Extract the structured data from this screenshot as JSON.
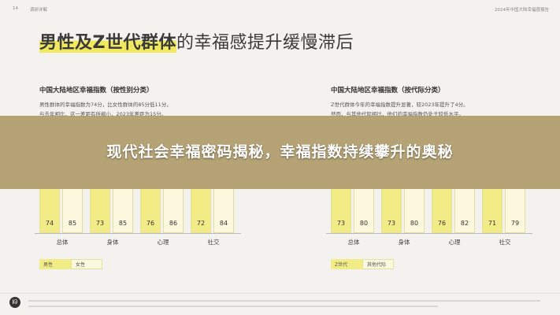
{
  "header": {
    "page_number": "14",
    "section": "调研详解",
    "report": "2024年中国大陆幸福感报告"
  },
  "title": {
    "highlight": "男性及Z世代群体",
    "rest": "的幸福感提升缓慢滞后"
  },
  "panels": {
    "left": {
      "heading": "中国大陆地区幸福指数（按性别分类）",
      "lines": [
        "男性群体的幸福指数为74分，比女性群体的85分低11分。",
        "与去年相比，这一差距有所缩小，2023年差距为15分。"
      ]
    },
    "right": {
      "heading": "中国大陆地区幸福指数（按代际分类）",
      "lines": [
        "Z世代群体今年的幸福指数提升显著，较2023年提升了4分。",
        "然而，与其他代际相比，他们的幸福指数仍处于较低水平。"
      ]
    }
  },
  "overlay": {
    "title": "现代社会幸福密码揭秘，幸福指数持续攀升的奥秘"
  },
  "charts": {
    "left": {
      "categories": [
        "总体",
        "身体",
        "心理",
        "社交"
      ],
      "values": [
        [
          "74",
          "85"
        ],
        [
          "73",
          "85"
        ],
        [
          "76",
          "86"
        ],
        [
          "72",
          "84"
        ]
      ],
      "legend": [
        "男性",
        "女性"
      ]
    },
    "right": {
      "categories": [
        "总体",
        "身体",
        "心理",
        "社交"
      ],
      "values": [
        [
          "73",
          "80"
        ],
        [
          "73",
          "80"
        ],
        [
          "76",
          "82"
        ],
        [
          "71",
          "79"
        ]
      ],
      "legend": [
        "Z世代",
        "其他代际"
      ]
    }
  },
  "colors": {
    "bar_primary": "#f2ec86",
    "bar_secondary": "#fbf8de",
    "overlay": "#aa9662"
  },
  "icons": {
    "footer_logo": "lululemon-logo-icon"
  }
}
